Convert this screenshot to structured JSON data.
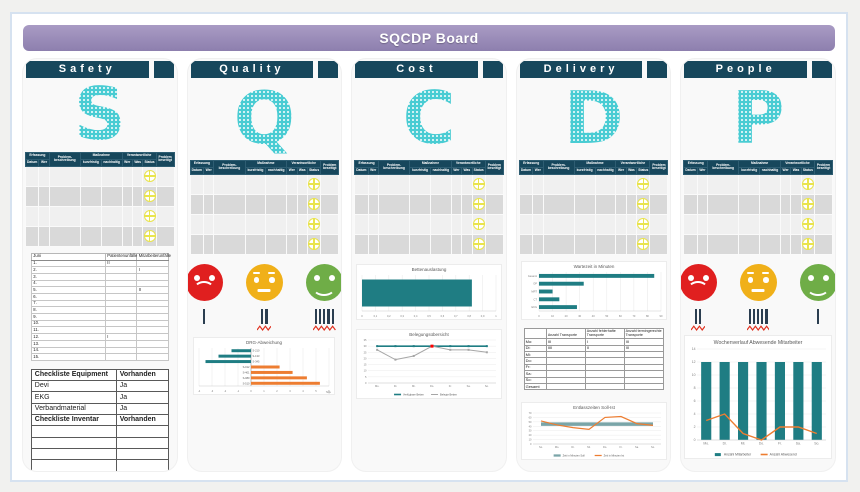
{
  "board": {
    "title": "SQCDP Board"
  },
  "columns": [
    {
      "title": "Safety",
      "letter": "S"
    },
    {
      "title": "Quality",
      "letter": "Q"
    },
    {
      "title": "Cost",
      "letter": "C"
    },
    {
      "title": "Delivery",
      "letter": "D"
    },
    {
      "title": "People",
      "letter": "P"
    }
  ],
  "problem_table": {
    "headers": {
      "erfassung": "Erfassung",
      "problem": "Problem-beschreibung",
      "massnahme": "Maßnahme",
      "verantwortliche": "Verantwortliche",
      "beseitigt": "Problem beseitigt",
      "sub": [
        "Datum",
        "Wer",
        "kurzfristig",
        "nachhaltig",
        "Wer",
        "Was",
        "Status"
      ]
    },
    "body_rows": 4,
    "status_icon": "crosshair-circle-icon",
    "status_color": "#e9e44d"
  },
  "safety": {
    "accident_table": {
      "headers": [
        "Juni",
        "Patientenunfälle",
        "Mitarbeiterunfälle"
      ],
      "rows": [
        [
          "1.",
          "II",
          ""
        ],
        [
          "2.",
          "",
          "I"
        ],
        [
          "3.",
          "",
          ""
        ],
        [
          "4.",
          "",
          ""
        ],
        [
          "5.",
          "",
          "II"
        ],
        [
          "6.",
          "",
          ""
        ],
        [
          "7.",
          "",
          ""
        ],
        [
          "8.",
          "",
          ""
        ],
        [
          "9.",
          "",
          ""
        ],
        [
          "10.",
          "",
          ""
        ],
        [
          "11.",
          "",
          ""
        ],
        [
          "12.",
          "I",
          ""
        ],
        [
          "13.",
          "",
          ""
        ],
        [
          "14.",
          "",
          ""
        ],
        [
          "15.",
          "",
          ""
        ]
      ]
    },
    "checklist": {
      "rows": [
        {
          "cells": [
            "Checkliste Equipment",
            "Vorhanden"
          ],
          "bold": true
        },
        {
          "cells": [
            "Devi",
            "Ja"
          ],
          "bold": false
        },
        {
          "cells": [
            "EKG",
            "Ja"
          ],
          "bold": false
        },
        {
          "cells": [
            "Verbandmaterial",
            "Ja"
          ],
          "bold": false
        },
        {
          "cells": [
            "Checkliste Inventar",
            "Vorhanden"
          ],
          "bold": true
        },
        {
          "cells": [
            "",
            ""
          ],
          "bold": false
        },
        {
          "cells": [
            "",
            ""
          ],
          "bold": false
        },
        {
          "cells": [
            "",
            ""
          ],
          "bold": false
        },
        {
          "cells": [
            "",
            ""
          ],
          "bold": false
        }
      ]
    }
  },
  "quality": {
    "smileys": [
      {
        "mood": "sad",
        "color": "#e01f1f",
        "tally": 1,
        "mark": false
      },
      {
        "mood": "neutral",
        "color": "#f0b019",
        "tally": 2,
        "mark": true
      },
      {
        "mood": "happy",
        "color": "#6fad47",
        "tally": 5,
        "mark": true
      }
    ],
    "drg_chart": {
      "type": "hbar",
      "title": "DRG-Abweichung",
      "xlabel": "Tage",
      "xlim": [
        -4,
        6
      ],
      "xticks": [
        -4,
        -3,
        -2,
        -1,
        0,
        1,
        2,
        3,
        4,
        5,
        6
      ],
      "label_pos": "axis",
      "thickness": 0.55,
      "bars": [
        {
          "label": "S-210",
          "value": -1.5,
          "color": "#1f7d83"
        },
        {
          "label": "S-133",
          "value": -2.5,
          "color": "#1f7d83"
        },
        {
          "label": "S-345",
          "value": -3.5,
          "color": "#1f7d83"
        },
        {
          "label": "S-012",
          "value": 2.2,
          "color": "#ed7d31"
        },
        {
          "label": "S-401",
          "value": 3.2,
          "color": "#ed7d31"
        },
        {
          "label": "S-080",
          "value": 4.3,
          "color": "#ed7d31"
        },
        {
          "label": "S-510",
          "value": 5.3,
          "color": "#ed7d31"
        }
      ]
    }
  },
  "cost": {
    "occupancy_bar": {
      "type": "hbar",
      "title": "Bettenauslastung",
      "xlim": [
        0,
        1
      ],
      "xticks": [
        0,
        0.1,
        0.2,
        0.3,
        0.4,
        0.5,
        0.6,
        0.7,
        0.8,
        0.9,
        1
      ],
      "xtick_labels": [
        "0",
        "0,1",
        "0,2",
        "0,3",
        "0,4",
        "0,5",
        "0,6",
        "0,7",
        "0,8",
        "0,9",
        "1"
      ],
      "label_pos": "none",
      "thickness": 0.75,
      "bars": [
        {
          "label": "",
          "value": 0.82,
          "color": "#1f7d83"
        }
      ]
    },
    "occupancy_line": {
      "type": "line",
      "title": "Belegungsübersicht",
      "categories": [
        "Mo.",
        "Di.",
        "Mi.",
        "Do.",
        "Fr.",
        "Sa.",
        "So."
      ],
      "ylim": [
        0,
        35
      ],
      "ystep": 5,
      "series": [
        {
          "name": "Verfügbare Betten",
          "color": "#1f7d83",
          "width": 1.6,
          "markers": true,
          "values": [
            30,
            30,
            30,
            30,
            30,
            30,
            30
          ]
        },
        {
          "name": "Belegte Betten",
          "color": "#a6a6a6",
          "width": 1,
          "markers": true,
          "values": [
            27,
            19,
            22,
            30,
            27,
            27,
            25
          ],
          "highlight_index": 3,
          "highlight_color": "#ff0000"
        }
      ],
      "legend": true
    }
  },
  "delivery": {
    "wait_chart": {
      "type": "hbar",
      "title": "Wartezeit in Minuten",
      "xlim": [
        0,
        90
      ],
      "xticks": [
        0,
        10,
        20,
        30,
        40,
        50,
        60,
        70,
        80,
        90
      ],
      "label_pos": "left",
      "thickness": 0.5,
      "bars": [
        {
          "label": "Gesamt",
          "value": 85,
          "color": "#1f7d83"
        },
        {
          "label": "OP",
          "value": 33,
          "color": "#1f7d83"
        },
        {
          "label": "MRT",
          "value": 10,
          "color": "#1f7d83"
        },
        {
          "label": "CT",
          "value": 15,
          "color": "#1f7d83"
        },
        {
          "label": "EKG",
          "value": 28,
          "color": "#1f7d83"
        }
      ]
    },
    "transport_table": {
      "headers": [
        "",
        "Anzahl Transporte",
        "Anzahl fehlerhafte Transporte",
        "Anzahl termingerechte Transporte"
      ],
      "rows": [
        [
          "Mo:",
          "III",
          "I",
          "III"
        ],
        [
          "Di:",
          "IIII",
          "II",
          "III"
        ],
        [
          "Mi:",
          "",
          "",
          ""
        ],
        [
          "Do:",
          "",
          "",
          ""
        ],
        [
          "Fr:",
          "",
          "",
          ""
        ],
        [
          "Sa:",
          "",
          "",
          ""
        ],
        [
          "So:",
          "",
          "",
          ""
        ],
        [
          "Gesamt",
          "",
          "",
          ""
        ]
      ]
    },
    "discharge_chart": {
      "type": "line",
      "title": "Entlasszeiten Soll-Ist",
      "categories": [
        "So.",
        "Mo.",
        "Di.",
        "Mi.",
        "Do.",
        "Fr.",
        "Sa.",
        "So."
      ],
      "ylim": [
        0,
        70
      ],
      "ystep": 10,
      "series": [
        {
          "name": "Zeit in Minuten Soll",
          "color": "#7aa5a8",
          "width": 3.5,
          "markers": false,
          "values": [
            45,
            45,
            45,
            45,
            45,
            45,
            45,
            45
          ]
        },
        {
          "name": "Zeit in Minuten Ist",
          "color": "#ed7d31",
          "width": 1.2,
          "markers": false,
          "values": [
            52,
            43,
            37,
            33,
            60,
            62,
            46,
            42
          ]
        }
      ],
      "legend": true
    }
  },
  "people": {
    "smileys": [
      {
        "mood": "sad",
        "color": "#e01f1f",
        "tally": 2,
        "mark": true
      },
      {
        "mood": "neutral",
        "color": "#f0b019",
        "tally": 5,
        "mark": true
      },
      {
        "mood": "happy",
        "color": "#6fad47",
        "tally": 1,
        "mark": false
      }
    ],
    "absence_chart": {
      "type": "combo",
      "title": "Wochenverlauf Abwesende Mitarbeiter",
      "categories": [
        "Mo.",
        "Di.",
        "Mi.",
        "Do.",
        "Fr.",
        "Sa.",
        "So."
      ],
      "ylim": [
        0,
        14
      ],
      "ystep": 2,
      "bars": {
        "name": "Anzahl Mitarbeiter",
        "color": "#1f7d83",
        "values": [
          12,
          12,
          12,
          12,
          12,
          12,
          12
        ]
      },
      "line": {
        "name": "Anzahl Abwesend",
        "color": "#ed7d31",
        "values": [
          3,
          4,
          1,
          0,
          2,
          2,
          1
        ]
      },
      "legend": true,
      "tick_size": 3.4,
      "title_size": 5.2
    }
  }
}
